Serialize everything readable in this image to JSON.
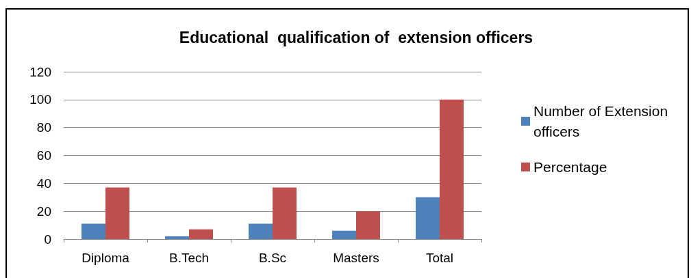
{
  "chart_data": {
    "type": "bar",
    "title": "Educational  qualification of  extension officers",
    "categories": [
      "Diploma",
      "B.Tech",
      "B.Sc",
      "Masters",
      "Total"
    ],
    "series": [
      {
        "name": "Number of Extension officers",
        "color": "#4f81bd",
        "values": [
          11,
          2,
          11,
          6,
          30
        ]
      },
      {
        "name": "Percentage",
        "color": "#c0504d",
        "values": [
          37,
          7,
          37,
          20,
          100
        ]
      }
    ],
    "ylim": [
      0,
      120
    ],
    "yticks": [
      0,
      20,
      40,
      60,
      80,
      100,
      120
    ],
    "grid": "y",
    "legend": "right"
  }
}
